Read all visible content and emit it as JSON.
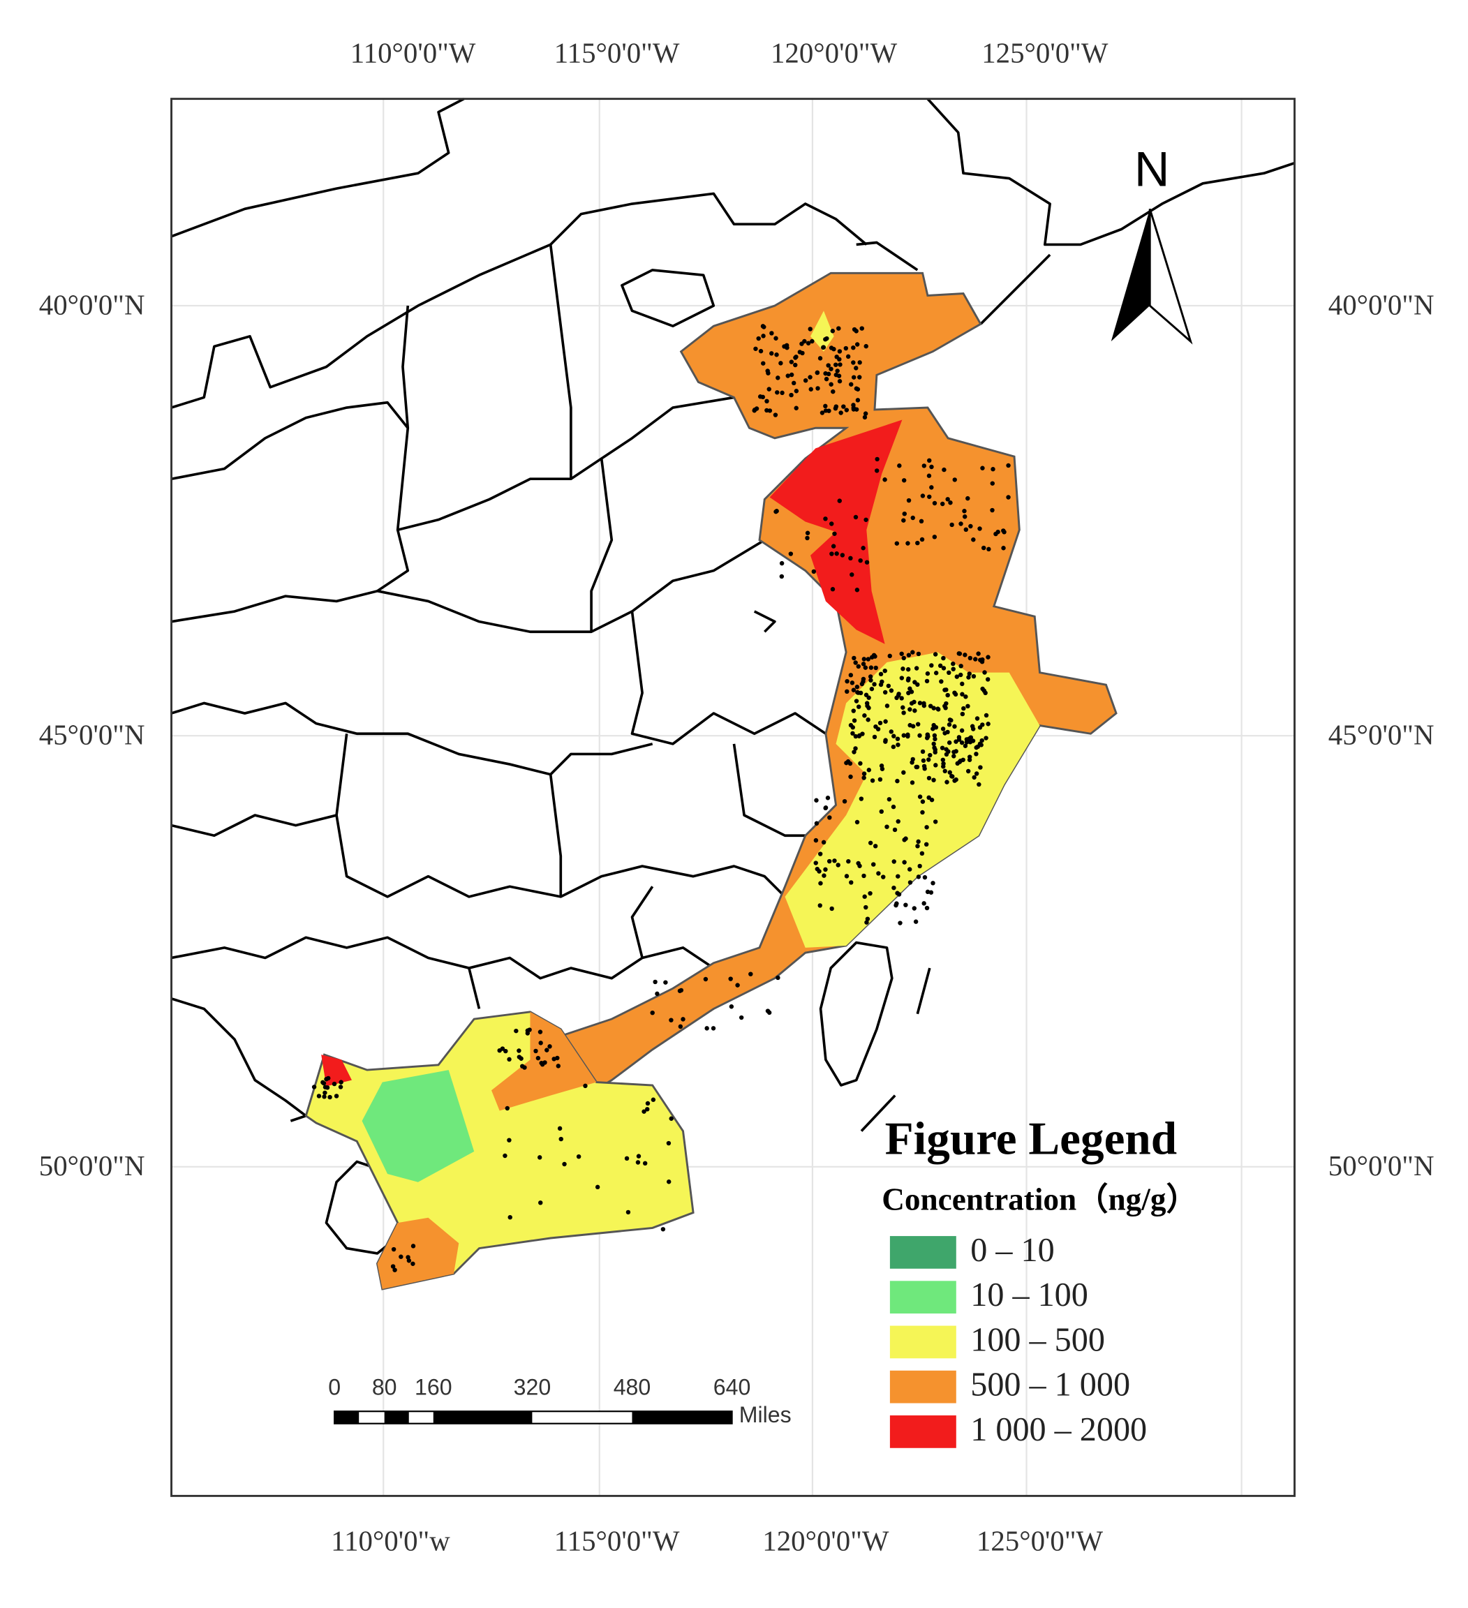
{
  "map": {
    "top_labels": [
      "110°0'0\"W",
      "115°0'0\"W",
      "120°0'0\"W",
      "125°0'0\"W"
    ],
    "bottom_labels": [
      "110°0'0\"w",
      "115°0'0\"W",
      "120°0'0\"W",
      "125°0'0\"W"
    ],
    "left_labels": [
      "40°0'0\"N",
      "45°0'0\"N",
      "50°0'0\"N"
    ],
    "right_labels": [
      "40°0'0\"N",
      "45°0'0\"N",
      "50°0'0\"N"
    ],
    "north": "N",
    "scale_bar": {
      "ticks": [
        "0",
        "80",
        "160",
        "320",
        "480",
        "640"
      ],
      "unit": "Miles"
    },
    "legend": {
      "title": "Figure Legend",
      "subtitle": "Concentration（ng/g）",
      "items": [
        {
          "label": "0 – 10",
          "color": "#3fa66b"
        },
        {
          "label": "10 – 100",
          "color": "#6fe87c"
        },
        {
          "label": "100 – 500",
          "color": "#f5f556"
        },
        {
          "label": "500 – 1 000",
          "color": "#f5922e"
        },
        {
          "label": "1 000 – 2000",
          "color": "#f21c1c"
        }
      ]
    }
  }
}
